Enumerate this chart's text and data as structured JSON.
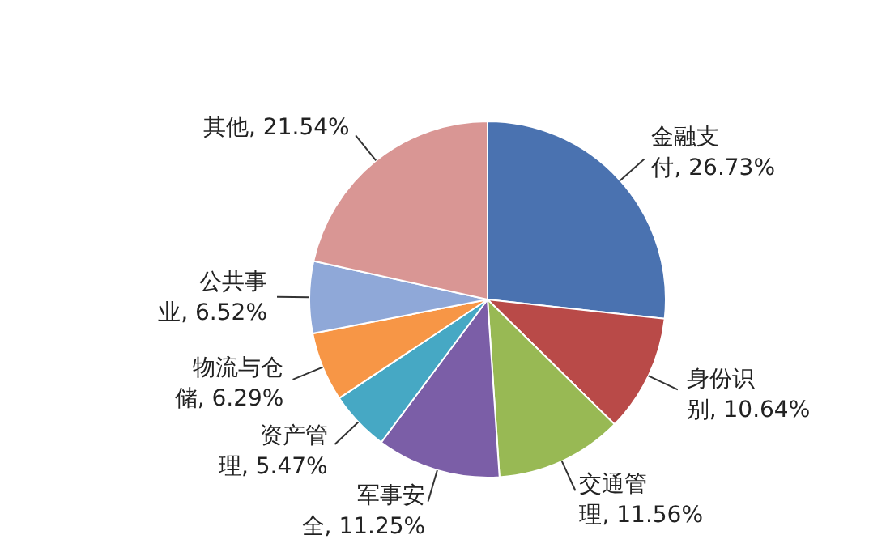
{
  "chart_data": {
    "type": "pie",
    "categories": [
      "金融支付",
      "身份识别",
      "交通管理",
      "军事安全",
      "资产管理",
      "物流与仓储",
      "公共事业",
      "其他"
    ],
    "values": [
      26.73,
      10.64,
      11.56,
      11.25,
      5.47,
      6.29,
      6.52,
      21.54
    ],
    "value_labels": [
      "26.73%",
      "10.64%",
      "11.56%",
      "11.25%",
      "5.47%",
      "6.29%",
      "6.52%",
      "21.54%"
    ],
    "colors": [
      "#4a72b0",
      "#b94a48",
      "#98b954",
      "#7b5ea7",
      "#46a8c4",
      "#f79646",
      "#8fa8d8",
      "#d99694"
    ],
    "legend": false
  }
}
